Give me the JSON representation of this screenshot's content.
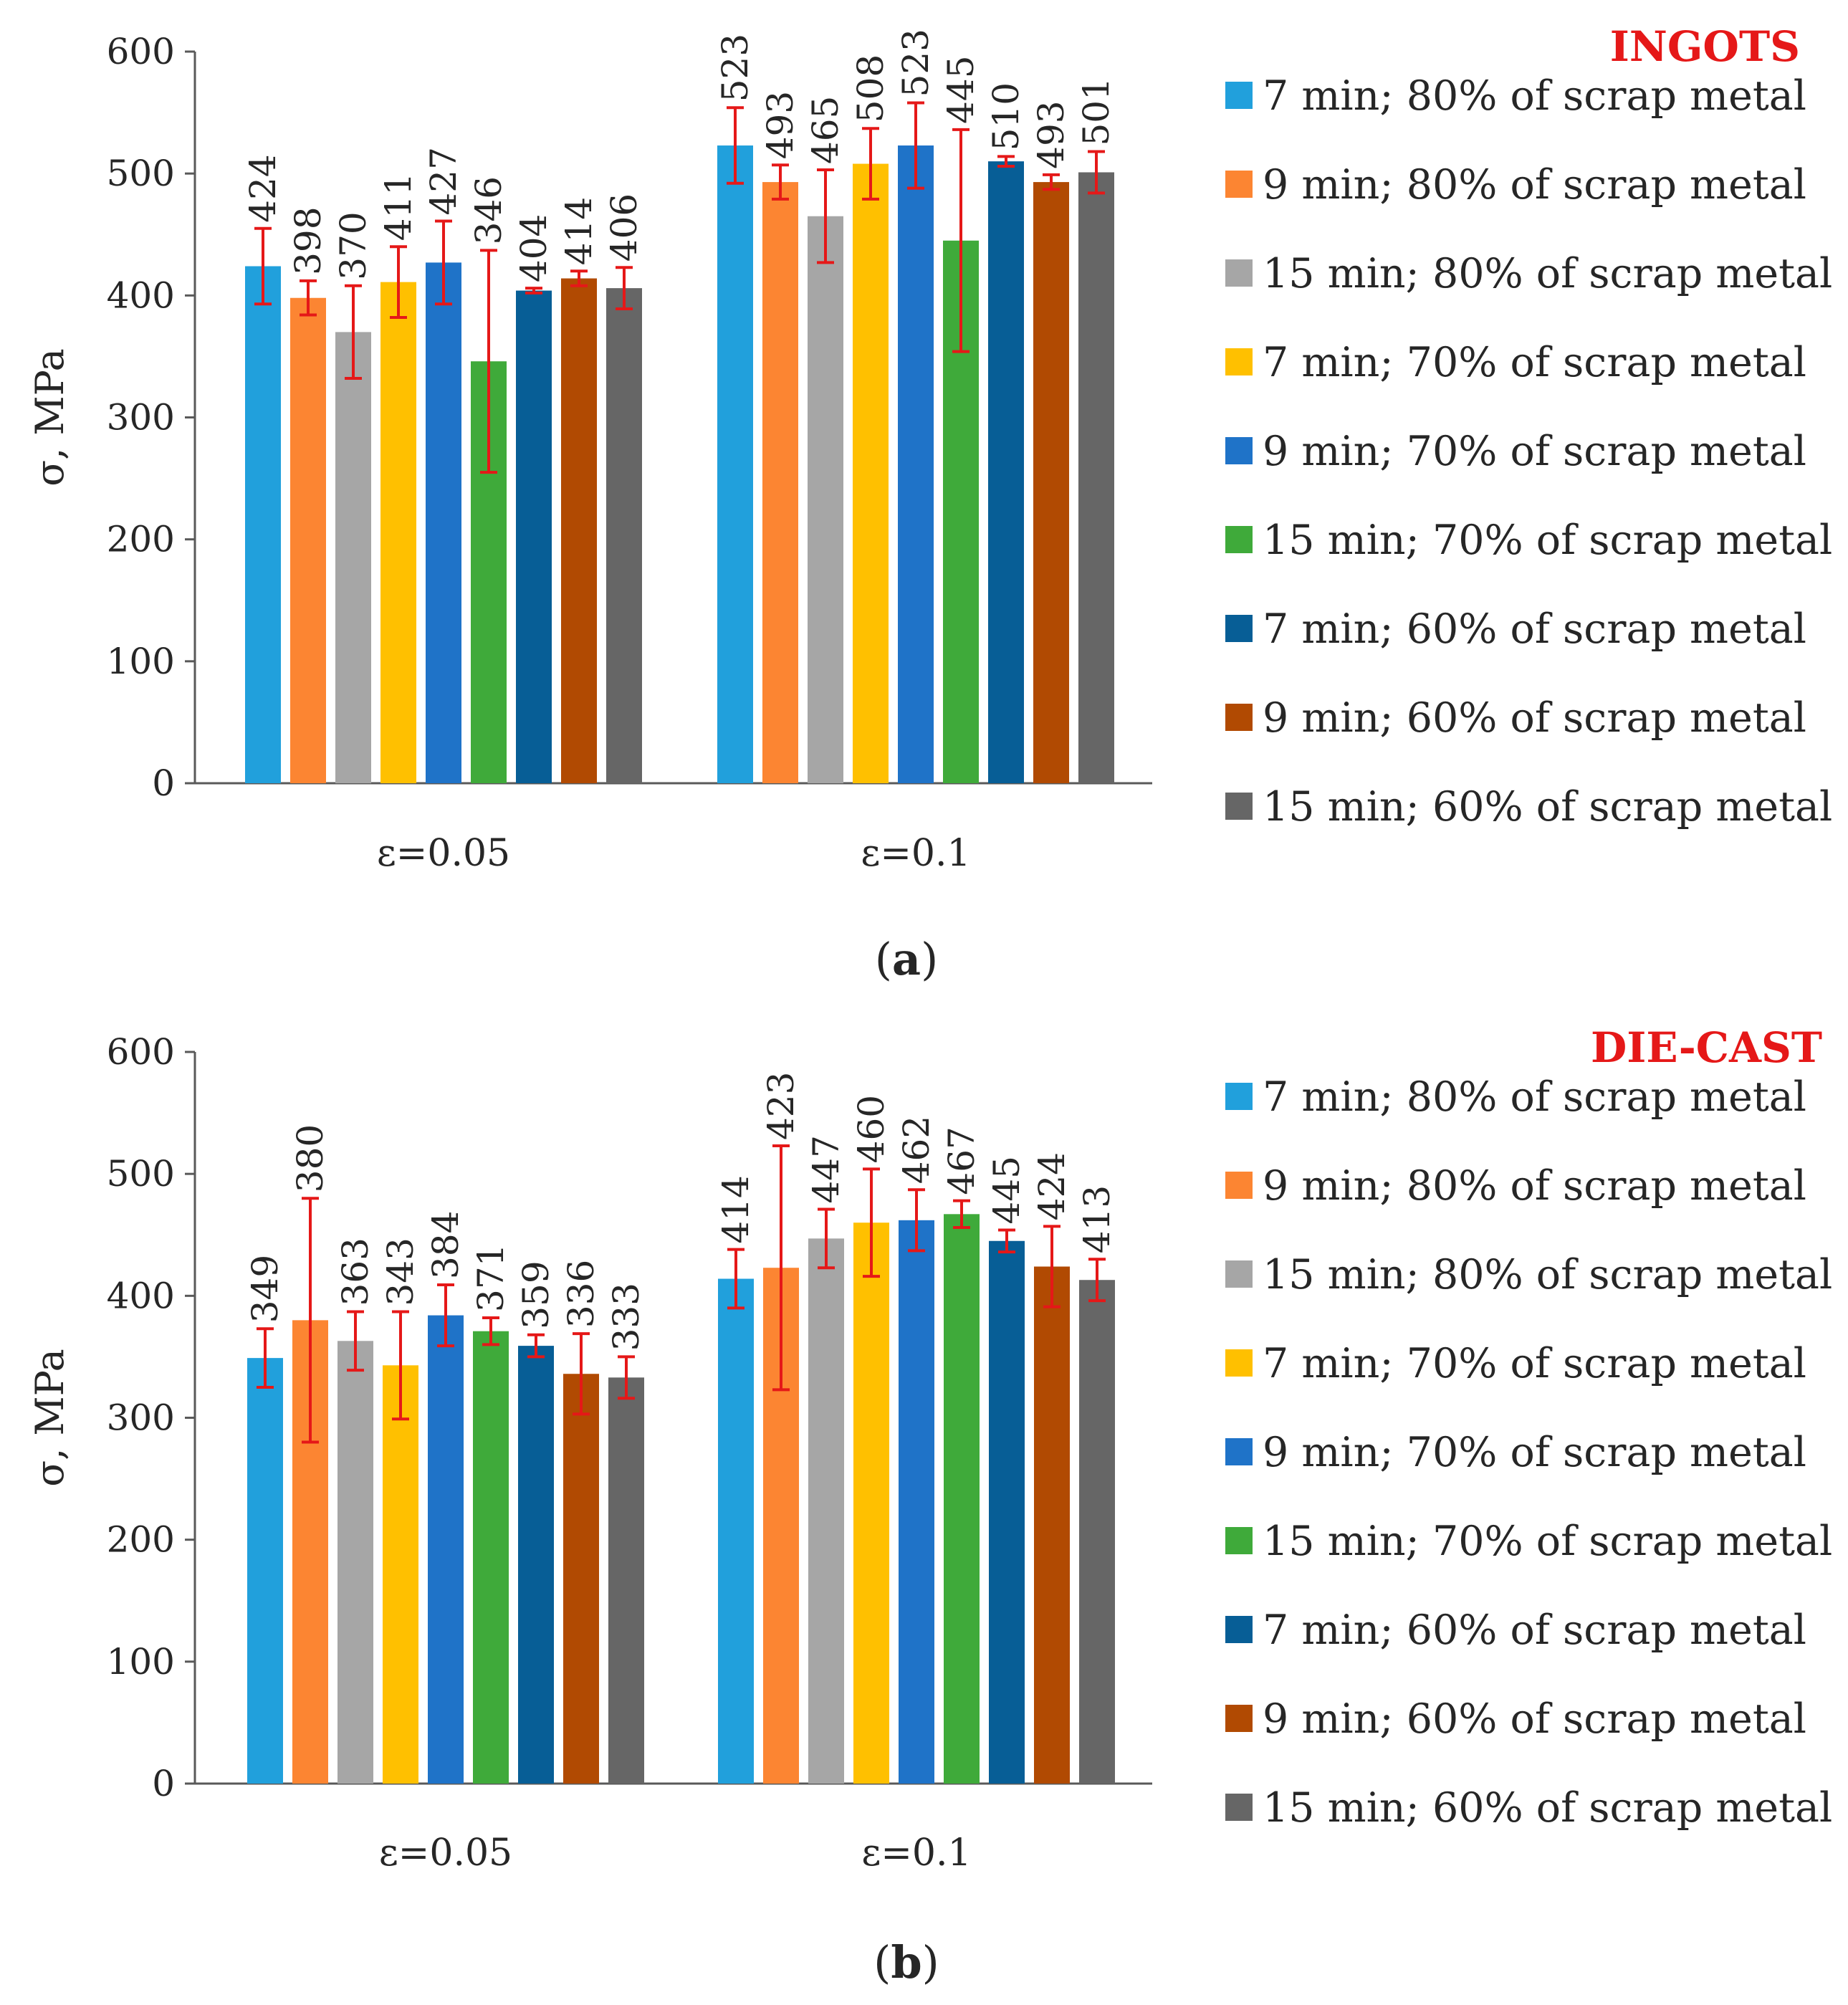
{
  "series": [
    {
      "name": "7 min; 80% of scrap metal",
      "color": "#21a0dc"
    },
    {
      "name": "9 min; 80% of scrap metal",
      "color": "#fc8532"
    },
    {
      "name": "15 min; 80% of scrap metal",
      "color": "#a6a6a6"
    },
    {
      "name": "7 min; 70% of scrap metal",
      "color": "#ffc000"
    },
    {
      "name": "9 min; 70% of scrap metal",
      "color": "#1f73c8"
    },
    {
      "name": "15 min; 70% of scrap metal",
      "color": "#3faa3a"
    },
    {
      "name": "7 min; 60% of scrap metal",
      "color": "#075e96"
    },
    {
      "name": "9 min; 60% of scrap metal",
      "color": "#b14a02"
    },
    {
      "name": "15 min; 60% of scrap metal",
      "color": "#666666"
    }
  ],
  "error_bar_color": "#e51818",
  "title_color": "#e51818",
  "chart_data": [
    {
      "type": "bar",
      "title": "INGOTS",
      "caption_prefix": "(",
      "caption_letter": "a",
      "caption_suffix": ")",
      "ylabel": "σ, MPa",
      "xlabel": "",
      "ylim": [
        0,
        600
      ],
      "yticks": [
        0,
        100,
        200,
        300,
        400,
        500,
        600
      ],
      "categories": [
        "ε=0.05",
        "ε=0.1"
      ],
      "values": [
        [
          424,
          398,
          370,
          411,
          427,
          346,
          404,
          414,
          406
        ],
        [
          523,
          493,
          465,
          508,
          523,
          445,
          510,
          493,
          501
        ]
      ],
      "errors": [
        [
          31,
          14,
          38,
          29,
          34,
          91,
          2,
          6,
          17
        ],
        [
          31,
          14,
          38,
          29,
          35,
          91,
          4,
          6,
          17
        ]
      ],
      "legend_position": "right"
    },
    {
      "type": "bar",
      "title": "DIE-CAST",
      "caption_prefix": "(",
      "caption_letter": "b",
      "caption_suffix": ")",
      "ylabel": "σ, MPa",
      "xlabel": "",
      "ylim": [
        0,
        600
      ],
      "yticks": [
        0,
        100,
        200,
        300,
        400,
        500,
        600
      ],
      "categories": [
        "ε=0.05",
        "ε=0.1"
      ],
      "values": [
        [
          349,
          380,
          363,
          343,
          384,
          371,
          359,
          336,
          333
        ],
        [
          414,
          423,
          447,
          460,
          462,
          467,
          445,
          424,
          413
        ]
      ],
      "errors": [
        [
          24,
          100,
          24,
          44,
          25,
          11,
          9,
          33,
          17
        ],
        [
          24,
          100,
          24,
          44,
          25,
          11,
          9,
          33,
          17
        ]
      ],
      "legend_position": "right"
    }
  ]
}
